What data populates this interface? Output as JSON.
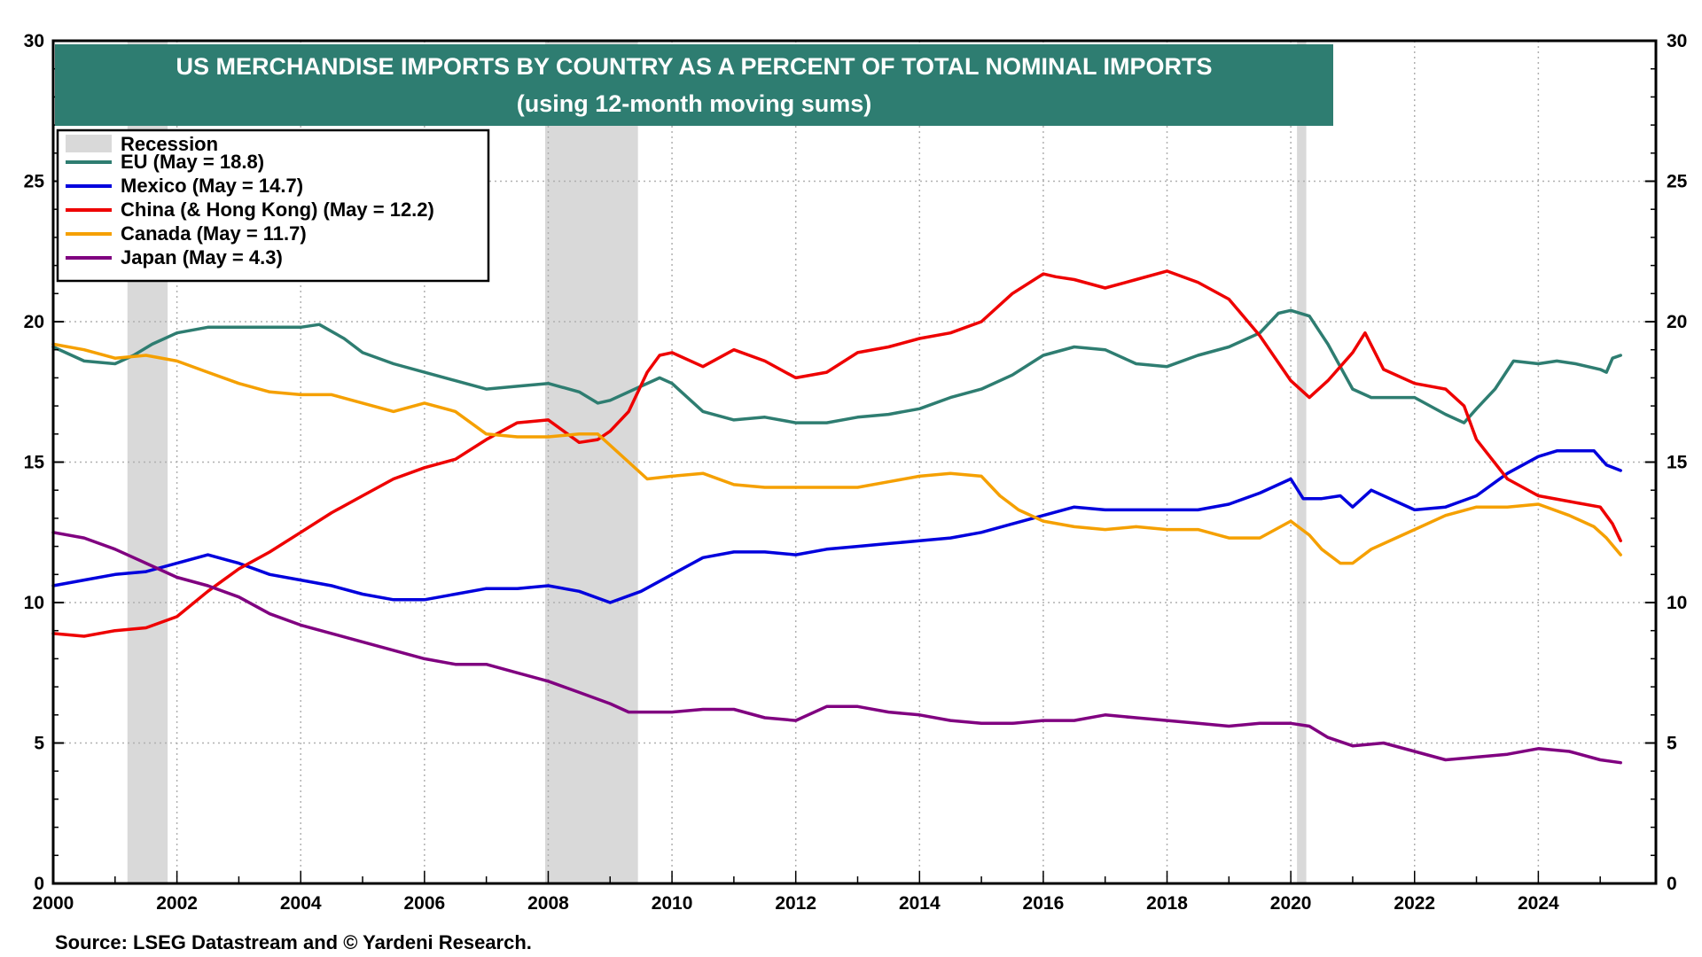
{
  "chart_data": {
    "type": "line",
    "title": "US MERCHANDISE IMPORTS BY COUNTRY AS A PERCENT OF TOTAL NOMINAL IMPORTS",
    "subtitle": "(using 12-month moving sums)",
    "source": "Source: LSEG Datastream and © Yardeni Research.",
    "xlim": [
      2000,
      2025.9
    ],
    "ylim": [
      0,
      30
    ],
    "x_ticks": [
      "2000",
      "2002",
      "2004",
      "2006",
      "2008",
      "2010",
      "2012",
      "2014",
      "2016",
      "2018",
      "2020",
      "2022",
      "2024"
    ],
    "y_ticks": [
      "0",
      "5",
      "10",
      "15",
      "20",
      "25",
      "30"
    ],
    "grid": true,
    "legend_position": "top-left",
    "recession_label": "Recession",
    "recessions": [
      [
        2001.2,
        2001.85
      ],
      [
        2007.95,
        2009.45
      ],
      [
        2020.1,
        2020.25
      ]
    ],
    "series": [
      {
        "name": "EU (May = 18.8)",
        "color": "#2e7d71",
        "x": [
          2000,
          2000.5,
          2001,
          2001.3,
          2001.6,
          2002,
          2002.5,
          2003,
          2003.5,
          2004,
          2004.3,
          2004.7,
          2005,
          2005.5,
          2006,
          2006.5,
          2007,
          2007.5,
          2008,
          2008.5,
          2008.8,
          2009,
          2009.5,
          2009.8,
          2010,
          2010.5,
          2011,
          2011.5,
          2012,
          2012.5,
          2013,
          2013.5,
          2014,
          2014.5,
          2015,
          2015.5,
          2016,
          2016.5,
          2017,
          2017.5,
          2018,
          2018.5,
          2019,
          2019.5,
          2019.8,
          2020,
          2020.3,
          2020.6,
          2021,
          2021.3,
          2021.7,
          2022,
          2022.5,
          2022.8,
          2023,
          2023.3,
          2023.6,
          2024,
          2024.3,
          2024.6,
          2025,
          2025.1,
          2025.2,
          2025.33
        ],
        "y": [
          19.1,
          18.6,
          18.5,
          18.8,
          19.2,
          19.6,
          19.8,
          19.8,
          19.8,
          19.8,
          19.9,
          19.4,
          18.9,
          18.5,
          18.2,
          17.9,
          17.6,
          17.7,
          17.8,
          17.5,
          17.1,
          17.2,
          17.7,
          18.0,
          17.8,
          16.8,
          16.5,
          16.6,
          16.4,
          16.4,
          16.6,
          16.7,
          16.9,
          17.3,
          17.6,
          18.1,
          18.8,
          19.1,
          19.0,
          18.5,
          18.4,
          18.8,
          19.1,
          19.6,
          20.3,
          20.4,
          20.2,
          19.2,
          17.6,
          17.3,
          17.3,
          17.3,
          16.7,
          16.4,
          16.9,
          17.6,
          18.6,
          18.5,
          18.6,
          18.5,
          18.3,
          18.2,
          18.7,
          18.8
        ]
      },
      {
        "name": "Mexico (May = 14.7)",
        "color": "#0000dd",
        "x": [
          2000,
          2000.5,
          2001,
          2001.5,
          2002,
          2002.5,
          2003,
          2003.5,
          2004,
          2004.5,
          2005,
          2005.5,
          2006,
          2006.5,
          2007,
          2007.5,
          2008,
          2008.5,
          2009,
          2009.5,
          2010,
          2010.5,
          2011,
          2011.5,
          2012,
          2012.5,
          2013,
          2013.5,
          2014,
          2014.5,
          2015,
          2015.5,
          2016,
          2016.5,
          2017,
          2017.5,
          2018,
          2018.5,
          2019,
          2019.5,
          2020,
          2020.2,
          2020.5,
          2020.8,
          2021,
          2021.3,
          2021.7,
          2022,
          2022.5,
          2023,
          2023.5,
          2024,
          2024.3,
          2024.6,
          2024.9,
          2025.1,
          2025.33
        ],
        "y": [
          10.6,
          10.8,
          11.0,
          11.1,
          11.4,
          11.7,
          11.4,
          11.0,
          10.8,
          10.6,
          10.3,
          10.1,
          10.1,
          10.3,
          10.5,
          10.5,
          10.6,
          10.4,
          10.0,
          10.4,
          11.0,
          11.6,
          11.8,
          11.8,
          11.7,
          11.9,
          12.0,
          12.1,
          12.2,
          12.3,
          12.5,
          12.8,
          13.1,
          13.4,
          13.3,
          13.3,
          13.3,
          13.3,
          13.5,
          13.9,
          14.4,
          13.7,
          13.7,
          13.8,
          13.4,
          14.0,
          13.6,
          13.3,
          13.4,
          13.8,
          14.6,
          15.2,
          15.4,
          15.4,
          15.4,
          14.9,
          14.7
        ]
      },
      {
        "name": "China (& Hong Kong) (May = 12.2)",
        "color": "#ee0000",
        "x": [
          2000,
          2000.5,
          2001,
          2001.5,
          2002,
          2002.5,
          2003,
          2003.5,
          2004,
          2004.5,
          2005,
          2005.5,
          2006,
          2006.5,
          2007,
          2007.5,
          2008,
          2008.5,
          2008.8,
          2009,
          2009.3,
          2009.6,
          2009.8,
          2010,
          2010.5,
          2011,
          2011.5,
          2012,
          2012.5,
          2013,
          2013.5,
          2014,
          2014.5,
          2015,
          2015.5,
          2016,
          2016.2,
          2016.5,
          2017,
          2017.5,
          2018,
          2018.5,
          2019,
          2019.5,
          2020,
          2020.3,
          2020.6,
          2021,
          2021.2,
          2021.5,
          2022,
          2022.5,
          2022.8,
          2023,
          2023.5,
          2024,
          2024.5,
          2025,
          2025.2,
          2025.33
        ],
        "y": [
          8.9,
          8.8,
          9.0,
          9.1,
          9.5,
          10.4,
          11.2,
          11.8,
          12.5,
          13.2,
          13.8,
          14.4,
          14.8,
          15.1,
          15.8,
          16.4,
          16.5,
          15.7,
          15.8,
          16.1,
          16.8,
          18.2,
          18.8,
          18.9,
          18.4,
          19.0,
          18.6,
          18.0,
          18.2,
          18.9,
          19.1,
          19.4,
          19.6,
          20.0,
          21.0,
          21.7,
          21.6,
          21.5,
          21.2,
          21.5,
          21.8,
          21.4,
          20.8,
          19.5,
          17.9,
          17.3,
          17.9,
          18.9,
          19.6,
          18.3,
          17.8,
          17.6,
          17.0,
          15.8,
          14.4,
          13.8,
          13.6,
          13.4,
          12.8,
          12.2
        ]
      },
      {
        "name": "Canada (May = 11.7)",
        "color": "#f5a000",
        "x": [
          2000,
          2000.5,
          2001,
          2001.5,
          2002,
          2002.5,
          2003,
          2003.5,
          2004,
          2004.5,
          2005,
          2005.5,
          2006,
          2006.5,
          2007,
          2007.5,
          2008,
          2008.5,
          2008.8,
          2009,
          2009.3,
          2009.6,
          2010,
          2010.5,
          2011,
          2011.5,
          2012,
          2012.5,
          2013,
          2013.5,
          2014,
          2014.5,
          2015,
          2015.3,
          2015.6,
          2016,
          2016.5,
          2017,
          2017.5,
          2018,
          2018.5,
          2019,
          2019.5,
          2020,
          2020.3,
          2020.5,
          2020.8,
          2021,
          2021.3,
          2021.7,
          2022,
          2022.5,
          2023,
          2023.5,
          2024,
          2024.5,
          2024.9,
          2025.1,
          2025.33
        ],
        "y": [
          19.2,
          19.0,
          18.7,
          18.8,
          18.6,
          18.2,
          17.8,
          17.5,
          17.4,
          17.4,
          17.1,
          16.8,
          17.1,
          16.8,
          16.0,
          15.9,
          15.9,
          16.0,
          16.0,
          15.6,
          15.0,
          14.4,
          14.5,
          14.6,
          14.2,
          14.1,
          14.1,
          14.1,
          14.1,
          14.3,
          14.5,
          14.6,
          14.5,
          13.8,
          13.3,
          12.9,
          12.7,
          12.6,
          12.7,
          12.6,
          12.6,
          12.3,
          12.3,
          12.9,
          12.4,
          11.9,
          11.4,
          11.4,
          11.9,
          12.3,
          12.6,
          13.1,
          13.4,
          13.4,
          13.5,
          13.1,
          12.7,
          12.3,
          11.7
        ]
      },
      {
        "name": "Japan (May = 4.3)",
        "color": "#800080",
        "x": [
          2000,
          2000.5,
          2001,
          2001.5,
          2002,
          2002.5,
          2003,
          2003.5,
          2004,
          2004.5,
          2005,
          2005.5,
          2006,
          2006.5,
          2007,
          2007.5,
          2008,
          2008.5,
          2009,
          2009.3,
          2009.6,
          2010,
          2010.5,
          2011,
          2011.5,
          2012,
          2012.5,
          2013,
          2013.5,
          2014,
          2014.5,
          2015,
          2015.5,
          2016,
          2016.5,
          2017,
          2017.5,
          2018,
          2018.5,
          2019,
          2019.5,
          2020,
          2020.3,
          2020.6,
          2021,
          2021.5,
          2022,
          2022.5,
          2023,
          2023.5,
          2024,
          2024.5,
          2025,
          2025.33
        ],
        "y": [
          12.5,
          12.3,
          11.9,
          11.4,
          10.9,
          10.6,
          10.2,
          9.6,
          9.2,
          8.9,
          8.6,
          8.3,
          8.0,
          7.8,
          7.8,
          7.5,
          7.2,
          6.8,
          6.4,
          6.1,
          6.1,
          6.1,
          6.2,
          6.2,
          5.9,
          5.8,
          6.3,
          6.3,
          6.1,
          6.0,
          5.8,
          5.7,
          5.7,
          5.8,
          5.8,
          6.0,
          5.9,
          5.8,
          5.7,
          5.6,
          5.7,
          5.7,
          5.6,
          5.2,
          4.9,
          5.0,
          4.7,
          4.4,
          4.5,
          4.6,
          4.8,
          4.7,
          4.4,
          4.3
        ]
      }
    ]
  }
}
